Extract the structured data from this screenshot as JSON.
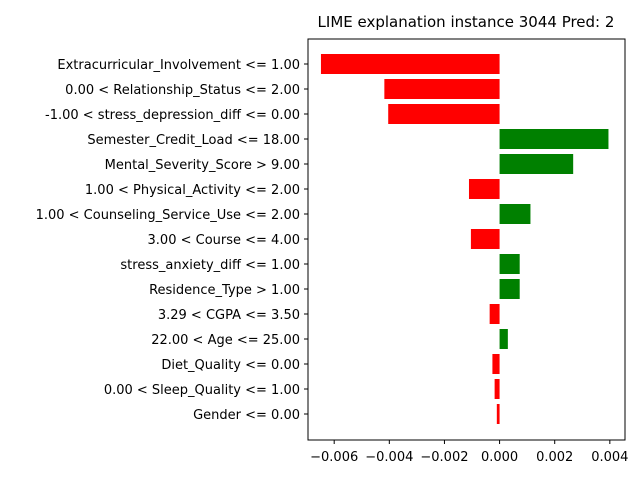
{
  "chart_data": {
    "type": "bar",
    "orientation": "horizontal",
    "title": "LIME explanation instance 3044 Pred: 2",
    "xlabel": "",
    "ylabel": "",
    "xlim": [
      -0.00695,
      0.00455
    ],
    "xticks": [
      -0.006,
      -0.004,
      -0.002,
      0.0,
      0.002,
      0.004
    ],
    "xtick_labels": [
      "−0.006",
      "−0.004",
      "−0.002",
      "0.000",
      "0.002",
      "0.004"
    ],
    "grid": false,
    "positive_color": "#008000",
    "negative_color": "#ff0000",
    "categories": [
      "Extracurricular_Involvement <= 1.00",
      "0.00 < Relationship_Status <= 2.00",
      "-1.00 < stress_depression_diff <= 0.00",
      "Semester_Credit_Load <= 18.00",
      "Mental_Severity_Score > 9.00",
      "1.00 < Physical_Activity <= 2.00",
      "1.00 < Counseling_Service_Use <= 2.00",
      "3.00 < Course <= 4.00",
      "stress_anxiety_diff <= 1.00",
      "Residence_Type > 1.00",
      "3.29 < CGPA <= 3.50",
      "22.00 < Age <= 25.00",
      "Diet_Quality <= 0.00",
      "0.00 < Sleep_Quality <= 1.00",
      "Gender <= 0.00"
    ],
    "values": [
      -0.00648,
      -0.00418,
      -0.00404,
      0.00395,
      0.00267,
      -0.00111,
      0.00112,
      -0.00104,
      0.00073,
      0.00073,
      -0.00036,
      0.0003,
      -0.00026,
      -0.00018,
      -0.0001
    ]
  }
}
